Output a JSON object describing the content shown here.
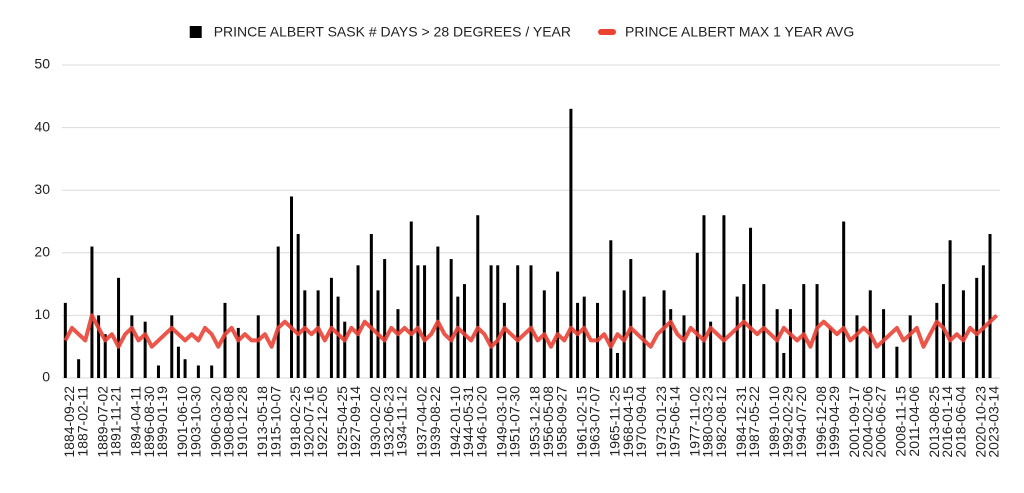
{
  "chart_data": {
    "type": "bar_line",
    "categories": [
      "1884-09-22",
      null,
      "1887-02-11",
      null,
      null,
      "1889-07-02",
      null,
      "1891-11-21",
      null,
      null,
      "1894-04-11",
      null,
      "1896-08-30",
      null,
      "1899-01-19",
      null,
      null,
      "1901-06-10",
      null,
      "1903-10-30",
      null,
      null,
      "1906-03-20",
      null,
      "1908-08-08",
      null,
      "1910-12-28",
      null,
      null,
      "1913-05-18",
      null,
      "1915-10-07",
      null,
      null,
      "1918-02-25",
      null,
      "1920-07-16",
      null,
      "1922-12-05",
      null,
      null,
      "1925-04-25",
      null,
      "1927-09-14",
      null,
      null,
      "1930-02-02",
      null,
      "1932-06-23",
      null,
      "1934-11-12",
      null,
      null,
      "1937-04-02",
      null,
      "1939-08-22",
      null,
      null,
      "1942-01-10",
      null,
      "1944-05-31",
      null,
      "1946-10-20",
      null,
      null,
      "1949-03-10",
      null,
      "1951-07-30",
      null,
      null,
      "1953-12-18",
      null,
      "1956-05-08",
      null,
      "1958-09-27",
      null,
      null,
      "1961-02-15",
      null,
      "1963-07-07",
      null,
      null,
      "1965-11-25",
      null,
      "1968-04-15",
      null,
      "1970-09-04",
      null,
      null,
      "1973-01-23",
      null,
      "1975-06-14",
      null,
      null,
      "1977-11-02",
      null,
      "1980-03-23",
      null,
      "1982-08-12",
      null,
      null,
      "1984-12-31",
      null,
      "1987-05-22",
      null,
      null,
      "1989-10-10",
      null,
      "1992-02-29",
      null,
      "1994-07-20",
      null,
      null,
      "1996-12-08",
      null,
      "1999-04-29",
      null,
      null,
      "2001-09-17",
      null,
      "2004-02-06",
      null,
      "2006-06-27",
      null,
      null,
      "2008-11-15",
      null,
      "2011-04-06",
      null,
      null,
      "2013-08-25",
      null,
      "2016-01-14",
      null,
      "2018-06-04",
      null,
      null,
      "2020-10-23",
      null,
      "2023-03-14",
      null
    ],
    "series": [
      {
        "name": "PRINCE ALBERT SASK # DAYS > 28 DEGREES / YEAR",
        "type": "bar",
        "color": "#000000",
        "values": [
          12,
          null,
          3,
          null,
          21,
          10,
          7,
          null,
          16,
          null,
          10,
          null,
          9,
          null,
          2,
          null,
          10,
          5,
          3,
          null,
          2,
          null,
          2,
          null,
          12,
          null,
          8,
          null,
          null,
          10,
          null,
          null,
          21,
          null,
          29,
          23,
          14,
          null,
          14,
          null,
          16,
          13,
          9,
          null,
          18,
          null,
          23,
          14,
          19,
          null,
          11,
          null,
          25,
          18,
          18,
          null,
          21,
          null,
          19,
          13,
          15,
          null,
          26,
          null,
          18,
          18,
          12,
          null,
          18,
          null,
          18,
          null,
          14,
          null,
          17,
          null,
          43,
          12,
          13,
          null,
          12,
          null,
          22,
          4,
          14,
          19,
          null,
          13,
          null,
          null,
          14,
          11,
          null,
          10,
          null,
          20,
          26,
          9,
          null,
          26,
          null,
          13,
          15,
          24,
          null,
          15,
          null,
          11,
          4,
          11,
          null,
          15,
          null,
          15,
          null,
          8,
          null,
          25,
          null,
          10,
          null,
          14,
          null,
          11,
          null,
          5,
          null,
          10,
          null,
          null,
          null,
          12,
          15,
          22,
          null,
          14,
          null,
          16,
          18,
          23,
          null
        ]
      },
      {
        "name": "PRINCE ALBERT MAX 1 YEAR AVG",
        "type": "line",
        "color": "#ea4335",
        "values": [
          6,
          8,
          7,
          6,
          10,
          8,
          6,
          7,
          5,
          7,
          8,
          6,
          7,
          5,
          6,
          7,
          8,
          7,
          6,
          7,
          6,
          8,
          7,
          5,
          7,
          8,
          6,
          7,
          6,
          6,
          7,
          5,
          8,
          9,
          8,
          7,
          8,
          7,
          8,
          6,
          8,
          7,
          6,
          8,
          7,
          9,
          8,
          7,
          6,
          8,
          7,
          8,
          7,
          8,
          6,
          7,
          9,
          7,
          6,
          8,
          7,
          6,
          8,
          7,
          5,
          6,
          8,
          7,
          6,
          7,
          8,
          6,
          7,
          5,
          7,
          6,
          8,
          7,
          8,
          6,
          6,
          7,
          5,
          7,
          6,
          8,
          7,
          6,
          5,
          7,
          8,
          9,
          7,
          6,
          8,
          7,
          6,
          8,
          7,
          6,
          7,
          8,
          9,
          8,
          7,
          8,
          7,
          6,
          8,
          7,
          6,
          7,
          5,
          8,
          9,
          8,
          7,
          8,
          6,
          7,
          8,
          7,
          5,
          6,
          7,
          8,
          6,
          7,
          8,
          5,
          7,
          9,
          8,
          6,
          7,
          6,
          8,
          7,
          8,
          9,
          10
        ]
      }
    ],
    "ylim": [
      0,
      50
    ],
    "yticks": [
      0,
      10,
      20,
      30,
      40,
      50
    ],
    "grid": true,
    "legend": "top"
  }
}
